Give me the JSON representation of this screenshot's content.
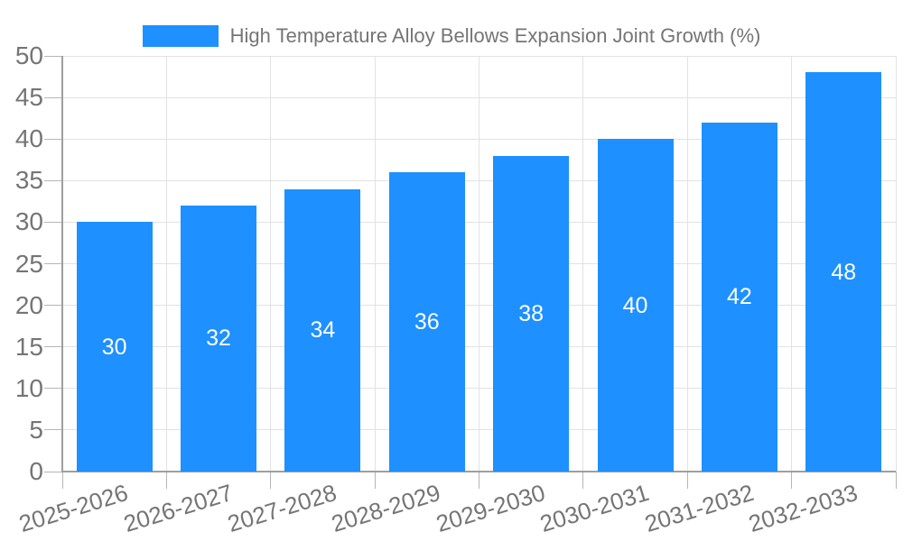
{
  "legend": {
    "label": "High Temperature Alloy Bellows Expansion Joint Growth (%)"
  },
  "chart_data": {
    "type": "bar",
    "title": "High Temperature Alloy Bellows Expansion Joint Growth (%)",
    "categories": [
      "2025-2026",
      "2026-2027",
      "2027-2028",
      "2028-2029",
      "2029-2030",
      "2030-2031",
      "2031-2032",
      "2032-2033"
    ],
    "values": [
      30,
      32,
      34,
      36,
      38,
      40,
      42,
      48
    ],
    "yticks": [
      0,
      5,
      10,
      15,
      20,
      25,
      30,
      35,
      40,
      45,
      50
    ],
    "ylim": [
      0,
      50
    ],
    "xlabel": "",
    "ylabel": "",
    "grid": true,
    "legend_position": "top-center",
    "x_label_rotation_deg": -17,
    "colors": {
      "bar": "#1e90ff",
      "value_label": "#ffffff",
      "axis_label": "#757575",
      "gridline": "#e2e2e2",
      "axis_line": "#9e9e9e",
      "tick": "#b5b5b5",
      "background": "#ffffff"
    }
  }
}
